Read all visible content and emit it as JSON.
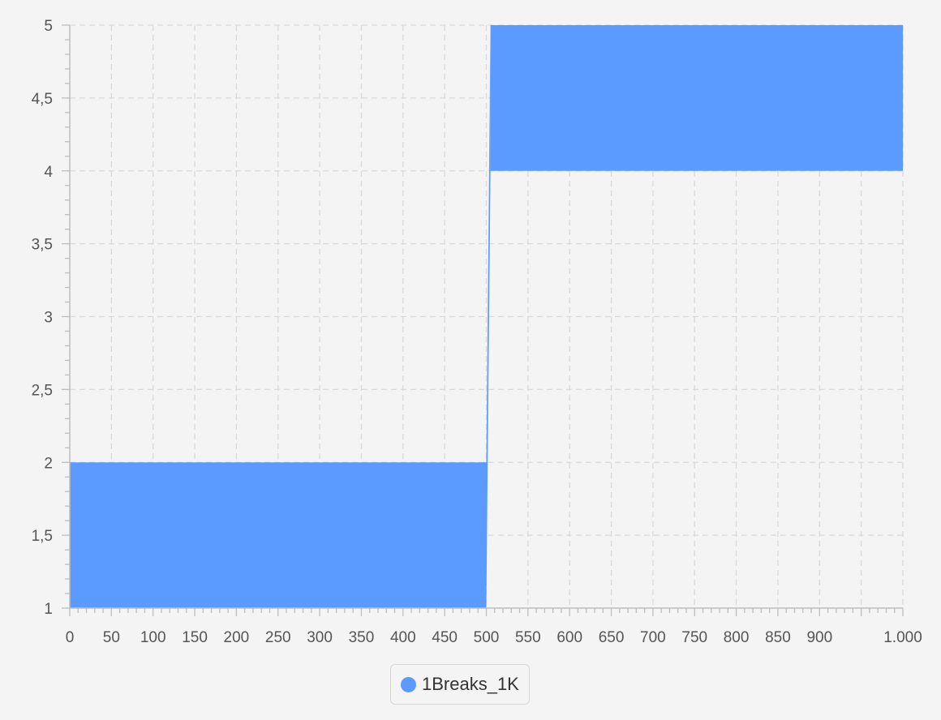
{
  "chart_data": {
    "type": "area",
    "title": "",
    "xlabel": "",
    "ylabel": "",
    "xlim": [
      0,
      1000
    ],
    "ylim": [
      1,
      5
    ],
    "x_ticks": [
      0,
      50,
      100,
      150,
      200,
      250,
      300,
      350,
      400,
      450,
      500,
      550,
      600,
      650,
      700,
      750,
      800,
      850,
      900,
      1000
    ],
    "x_tick_labels": [
      "0",
      "50",
      "100",
      "150",
      "200",
      "250",
      "300",
      "350",
      "400",
      "450",
      "500",
      "550",
      "600",
      "650",
      "700",
      "750",
      "800",
      "850",
      "900",
      "1.000"
    ],
    "y_ticks": [
      1,
      1.5,
      2,
      2.5,
      3,
      3.5,
      4,
      4.5,
      5
    ],
    "y_tick_labels": [
      "1",
      "1,5",
      "2",
      "2,5",
      "3",
      "3,5",
      "4",
      "4,5",
      "5"
    ],
    "grid": true,
    "legend_position": "bottom-center",
    "series": [
      {
        "name": "1Breaks_1K",
        "color": "#5b9bff",
        "bands": [
          {
            "x": [
              0,
              500
            ],
            "low": 1,
            "high": 2
          },
          {
            "x": [
              505,
              1000
            ],
            "low": 4,
            "high": 5
          }
        ],
        "connector": [
          {
            "x": 495,
            "low": 2,
            "high": 2
          },
          {
            "x": 500,
            "low": 1,
            "high": 2
          },
          {
            "x": 505,
            "low": 4,
            "high": 5
          }
        ]
      }
    ]
  }
}
